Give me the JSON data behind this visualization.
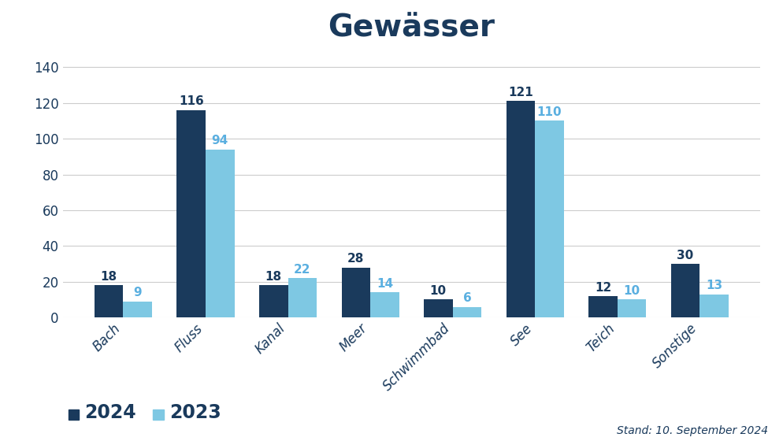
{
  "title": "Gewässer",
  "categories": [
    "Bach",
    "Fluss",
    "Kanal",
    "Meer",
    "Schwimmbad",
    "See",
    "Teich",
    "Sonstige"
  ],
  "values_2024": [
    18,
    116,
    18,
    28,
    10,
    121,
    12,
    30
  ],
  "values_2023": [
    9,
    94,
    22,
    14,
    6,
    110,
    10,
    13
  ],
  "color_2024": "#1a3a5c",
  "color_2023": "#7ec8e3",
  "background_color": "#ffffff",
  "title_color": "#1a3a5c",
  "label_color_2024": "#1a3a5c",
  "label_color_2023": "#5aafe0",
  "yticks": [
    0,
    20,
    40,
    60,
    80,
    100,
    120,
    140
  ],
  "ylim": [
    0,
    148
  ],
  "legend_2024": "2024",
  "legend_2023": "2023",
  "footnote": "Stand: 10. September 2024",
  "title_fontsize": 28,
  "bar_width": 0.35,
  "grid_color": "#cccccc",
  "tick_color": "#1a3a5c",
  "axis_label_fontsize": 12,
  "value_label_fontsize": 11
}
